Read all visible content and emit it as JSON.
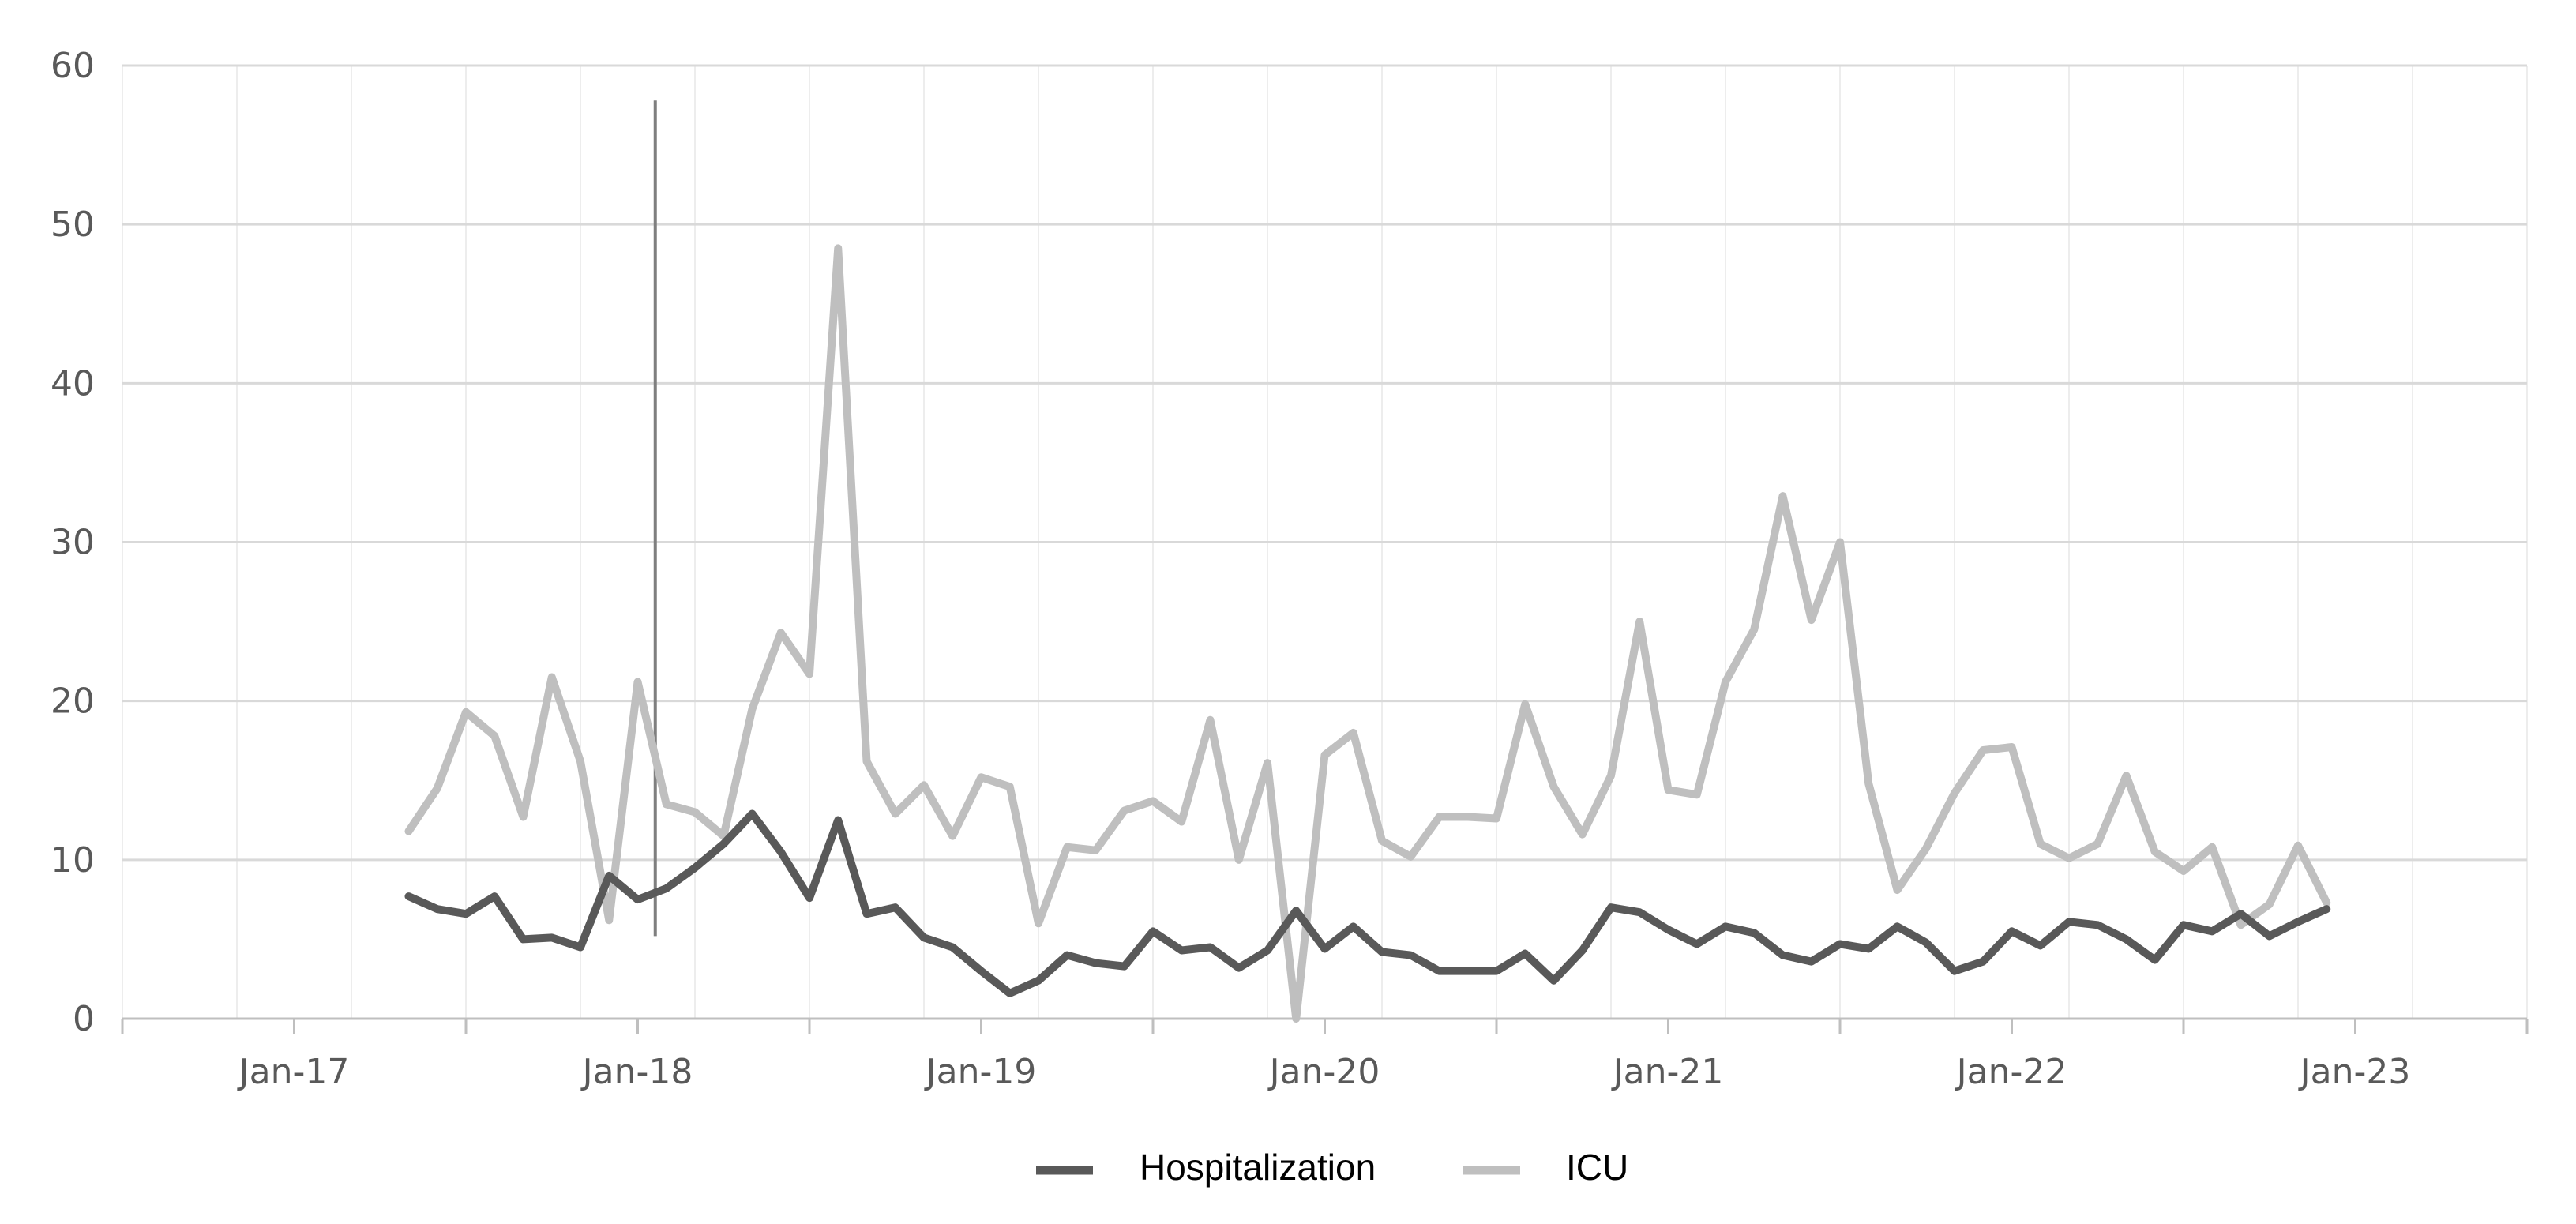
{
  "chart_data": {
    "type": "line",
    "title": "",
    "xlabel": "",
    "ylabel": "",
    "ylim": [
      0,
      60
    ],
    "y_ticks": [
      "0",
      "10",
      "20",
      "30",
      "40",
      "50",
      "60"
    ],
    "x_ticks": [
      "Jan-17",
      "Jan-18",
      "Jan-19",
      "Jan-20",
      "Jan-21",
      "Jan-22",
      "Jan-23"
    ],
    "x_range": [
      "2016-07",
      "2023-07"
    ],
    "grid": true,
    "legend_position": "bottom",
    "x": [
      "2017-05",
      "2017-06",
      "2017-07",
      "2017-08",
      "2017-09",
      "2017-10",
      "2017-11",
      "2017-12",
      "2018-01",
      "2018-02",
      "2018-03",
      "2018-04",
      "2018-05",
      "2018-06",
      "2018-07",
      "2018-08",
      "2018-09",
      "2018-10",
      "2018-11",
      "2018-12",
      "2019-01",
      "2019-02",
      "2019-03",
      "2019-04",
      "2019-05",
      "2019-06",
      "2019-07",
      "2019-08",
      "2019-09",
      "2019-10",
      "2019-11",
      "2019-12",
      "2020-01",
      "2020-02",
      "2020-03",
      "2020-04",
      "2020-05",
      "2020-06",
      "2020-07",
      "2020-08",
      "2020-09",
      "2020-10",
      "2020-11",
      "2020-12",
      "2021-01",
      "2021-02",
      "2021-03",
      "2021-04",
      "2021-05",
      "2021-06",
      "2021-07",
      "2021-08",
      "2021-09",
      "2021-10",
      "2021-11",
      "2021-12",
      "2022-01",
      "2022-02",
      "2022-03",
      "2022-04",
      "2022-05",
      "2022-06",
      "2022-07",
      "2022-08",
      "2022-09",
      "2022-10",
      "2022-11",
      "2022-12"
    ],
    "series": [
      {
        "name": "Hospitalization",
        "color": "#595959",
        "values": [
          7.7,
          6.9,
          6.6,
          7.7,
          5.0,
          5.1,
          4.5,
          9.0,
          7.5,
          8.2,
          9.5,
          11.0,
          12.9,
          10.5,
          7.6,
          12.5,
          6.6,
          7.0,
          5.1,
          4.5,
          3.0,
          1.6,
          2.4,
          4.0,
          3.5,
          3.3,
          5.5,
          4.3,
          4.5,
          3.2,
          4.3,
          6.8,
          4.4,
          5.8,
          4.2,
          4.0,
          3.0,
          3.0,
          3.0,
          4.1,
          2.4,
          4.3,
          7.0,
          6.7,
          5.6,
          4.7,
          5.8,
          5.4,
          4.0,
          3.6,
          4.7,
          4.4,
          5.8,
          4.8,
          3.0,
          3.6,
          5.5,
          4.6,
          6.1,
          5.9,
          5.0,
          3.7,
          5.9,
          5.5,
          6.6,
          5.2,
          6.1,
          6.9
        ]
      },
      {
        "name": "ICU",
        "color": "#bfbfbf",
        "values": [
          11.8,
          14.5,
          19.3,
          17.8,
          12.7,
          21.5,
          16.2,
          6.2,
          21.2,
          13.5,
          13.0,
          11.5,
          19.5,
          24.3,
          21.7,
          48.5,
          16.2,
          12.9,
          14.7,
          11.5,
          15.2,
          14.6,
          6.0,
          10.8,
          10.6,
          13.1,
          13.7,
          12.4,
          18.8,
          10.0,
          16.1,
          0.0,
          16.6,
          18.0,
          11.2,
          10.2,
          12.7,
          12.7,
          12.6,
          19.8,
          14.6,
          11.6,
          15.3,
          25.0,
          14.4,
          14.1,
          21.2,
          24.5,
          32.9,
          25.1,
          30.0,
          14.8,
          8.1,
          10.7,
          14.2,
          16.9,
          17.1,
          11.0,
          10.1,
          11.0,
          15.3,
          10.5,
          9.3,
          10.8,
          5.9,
          7.2,
          10.9,
          7.3
        ]
      }
    ],
    "annotation": {
      "type": "vertical-line",
      "x": "2018-02",
      "y_range": [
        5.2,
        57.8
      ],
      "color": "#7f7f7f"
    }
  }
}
